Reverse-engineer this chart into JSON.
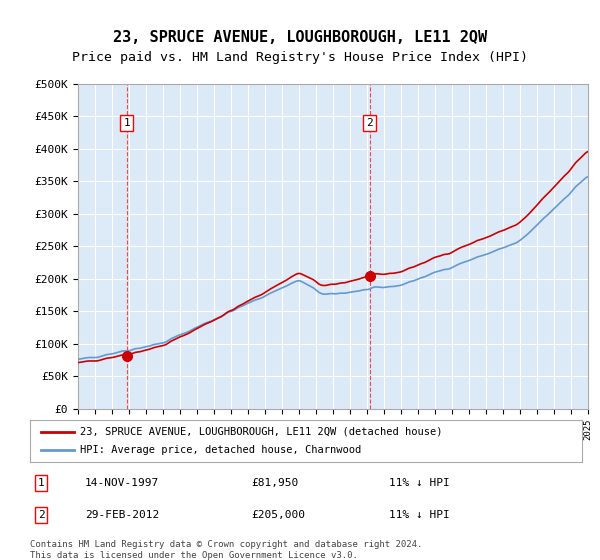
{
  "title": "23, SPRUCE AVENUE, LOUGHBOROUGH, LE11 2QW",
  "subtitle": "Price paid vs. HM Land Registry's House Price Index (HPI)",
  "ylabel": "",
  "background_color": "#dce9f7",
  "plot_bg_color": "#dce9f7",
  "fig_bg_color": "#ffffff",
  "ylim": [
    0,
    500000
  ],
  "yticks": [
    0,
    50000,
    100000,
    150000,
    200000,
    250000,
    300000,
    350000,
    400000,
    450000,
    500000
  ],
  "ytick_labels": [
    "£0",
    "£50K",
    "£100K",
    "£150K",
    "£200K",
    "£250K",
    "£300K",
    "£350K",
    "£400K",
    "£450K",
    "£500K"
  ],
  "year_start": 1995,
  "year_end": 2025,
  "sale1_date": 1997.87,
  "sale1_price": 81950,
  "sale1_label": "1",
  "sale2_date": 2012.16,
  "sale2_price": 205000,
  "sale2_label": "2",
  "legend_line1": "23, SPRUCE AVENUE, LOUGHBOROUGH, LE11 2QW (detached house)",
  "legend_line2": "HPI: Average price, detached house, Charnwood",
  "table_row1": [
    "1",
    "14-NOV-1997",
    "£81,950",
    "11% ↓ HPI"
  ],
  "table_row2": [
    "2",
    "29-FEB-2012",
    "£205,000",
    "11% ↓ HPI"
  ],
  "footer": "Contains HM Land Registry data © Crown copyright and database right 2024.\nThis data is licensed under the Open Government Licence v3.0.",
  "red_line_color": "#cc0000",
  "blue_line_color": "#6699cc",
  "grid_color": "#ffffff",
  "title_fontsize": 11,
  "subtitle_fontsize": 9.5
}
